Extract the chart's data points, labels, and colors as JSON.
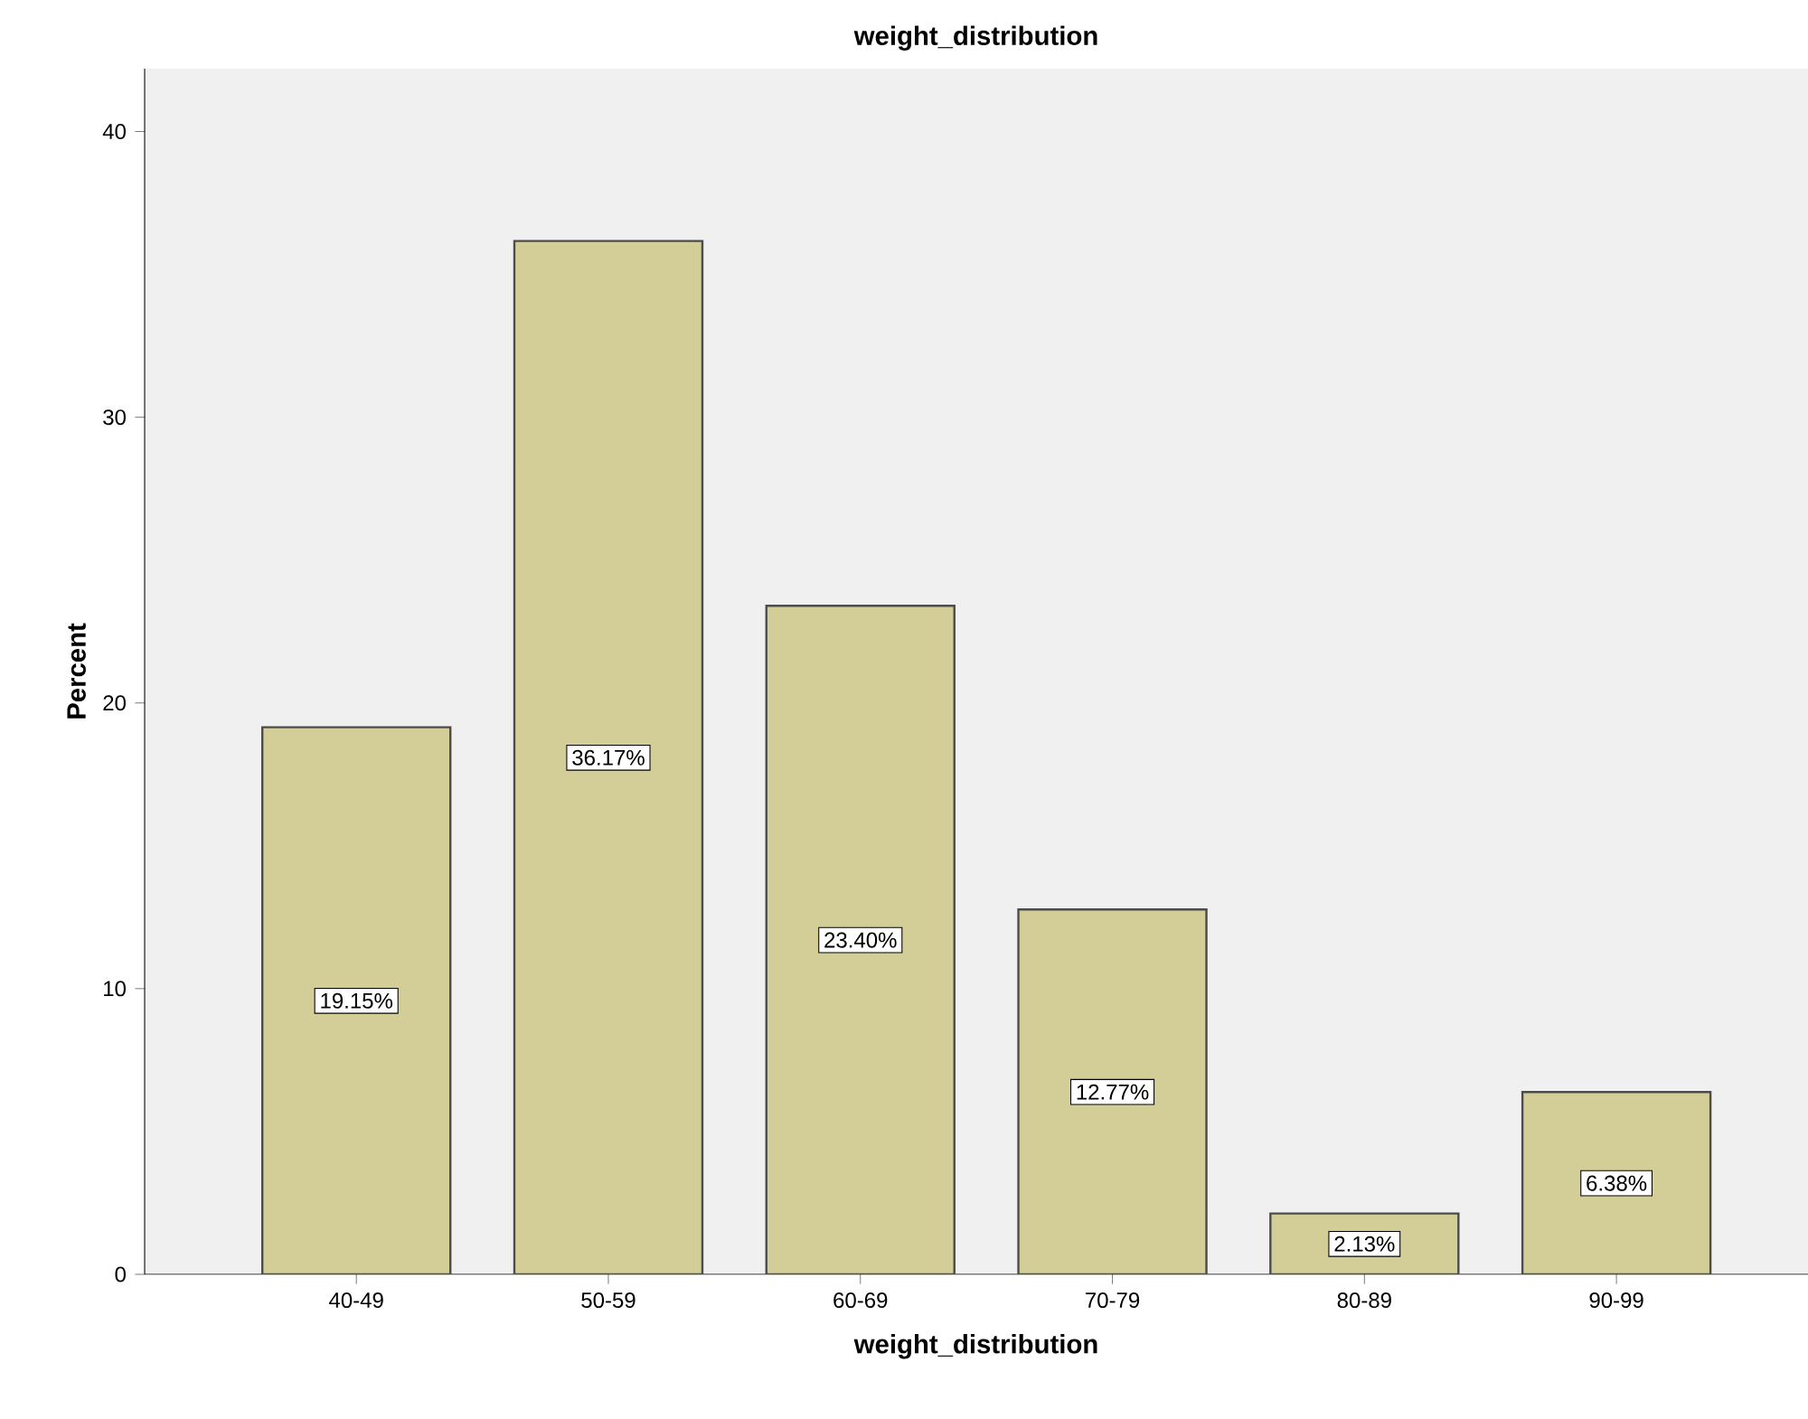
{
  "chart_data": {
    "type": "bar",
    "title": "weight_distribution",
    "xlabel": "weight_distribution",
    "ylabel": "Percent",
    "categories": [
      "40-49",
      "50-59",
      "60-69",
      "70-79",
      "80-89",
      "90-99"
    ],
    "values": [
      19.15,
      36.17,
      23.4,
      12.77,
      2.13,
      6.38
    ],
    "value_labels": [
      "19.15%",
      "36.17%",
      "23.40%",
      "12.77%",
      "2.13%",
      "6.38%"
    ],
    "color": "#d3ce97",
    "ylim": [
      0,
      42.2
    ],
    "yticks": [
      0,
      10,
      20,
      30,
      40
    ],
    "grid": false
  }
}
